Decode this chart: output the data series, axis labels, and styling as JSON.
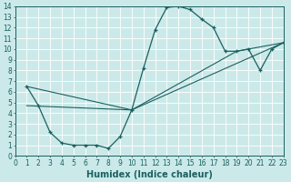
{
  "xlabel": "Humidex (Indice chaleur)",
  "xlim": [
    0,
    23
  ],
  "ylim": [
    0,
    14
  ],
  "bg_color": "#cce9e9",
  "grid_color": "#b0d8d8",
  "line_color": "#1a6060",
  "line1_x": [
    1,
    2,
    3,
    4,
    5,
    6,
    7,
    8,
    9,
    10,
    11,
    12,
    13,
    14,
    15,
    16,
    17,
    18,
    19,
    20,
    21,
    22,
    23
  ],
  "line1_y": [
    6.5,
    4.7,
    2.2,
    1.2,
    1.0,
    1.0,
    1.0,
    0.7,
    1.8,
    4.3,
    8.2,
    11.8,
    13.9,
    14.0,
    13.7,
    12.8,
    12.0,
    9.8,
    9.8,
    10.0,
    8.0,
    10.0,
    10.6
  ],
  "line2_x": [
    1,
    10,
    23
  ],
  "line2_y": [
    6.5,
    4.3,
    10.6
  ],
  "line3_x": [
    1,
    10,
    19,
    23
  ],
  "line3_y": [
    4.7,
    4.3,
    9.8,
    10.6
  ],
  "font_size": 7,
  "tick_font_size": 5.5
}
